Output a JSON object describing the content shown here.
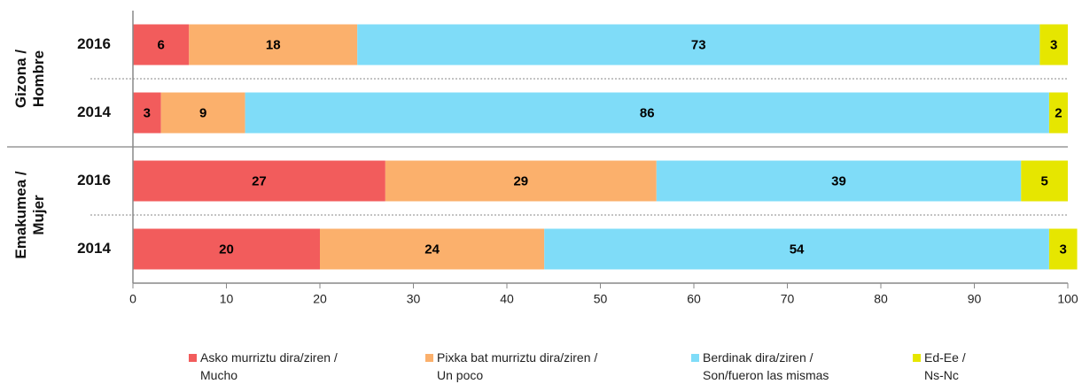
{
  "chart_data": {
    "type": "stacked_barh",
    "groups": [
      {
        "name": "Gizona / Hombre",
        "rows": [
          0,
          1
        ]
      },
      {
        "name": "Emakumea / Mujer",
        "rows": [
          2,
          3
        ]
      }
    ],
    "categories": [
      "2016",
      "2014",
      "2016",
      "2014"
    ],
    "series": [
      {
        "name": "Asko murriztu dira/ziren / Mucho",
        "color": "#f25c5c",
        "values": [
          6,
          3,
          27,
          20
        ]
      },
      {
        "name": "Pixka bat murriztu dira/ziren / Un poco",
        "color": "#fbb06c",
        "values": [
          18,
          9,
          29,
          24
        ]
      },
      {
        "name": "Berdinak dira/ziren / Son/fueron las mismas",
        "color": "#7fdcf8",
        "values": [
          73,
          86,
          39,
          54
        ]
      },
      {
        "name": "Ed-Ee / Ns-Nc",
        "color": "#e6e600",
        "values": [
          3,
          2,
          5,
          3
        ]
      }
    ],
    "xlim": [
      0,
      100
    ],
    "xticks": [
      0,
      10,
      20,
      30,
      40,
      50,
      60,
      70,
      80,
      90,
      100
    ]
  }
}
